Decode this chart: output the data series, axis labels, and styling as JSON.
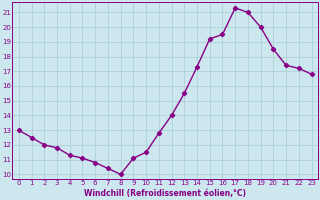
{
  "x": [
    0,
    1,
    2,
    3,
    4,
    5,
    6,
    7,
    8,
    9,
    10,
    11,
    12,
    13,
    14,
    15,
    16,
    17,
    18,
    19,
    20,
    21,
    22,
    23
  ],
  "y": [
    13.0,
    12.5,
    12.0,
    11.8,
    11.3,
    11.1,
    10.8,
    10.4,
    10.0,
    11.1,
    11.5,
    12.8,
    14.0,
    15.5,
    17.3,
    19.2,
    19.5,
    21.3,
    21.0,
    20.0,
    18.5,
    17.4,
    17.2,
    16.8
  ],
  "line_color": "#880088",
  "marker": "D",
  "marker_size": 2.2,
  "bg_color": "#cce8ee",
  "grid_color": "#aaccd4",
  "xlabel": "Windchill (Refroidissement éolien,°C)",
  "ylim": [
    9.7,
    21.7
  ],
  "xlim": [
    -0.5,
    23.5
  ],
  "yticks": [
    10,
    11,
    12,
    13,
    14,
    15,
    16,
    17,
    18,
    19,
    20,
    21
  ],
  "xticks": [
    0,
    1,
    2,
    3,
    4,
    5,
    6,
    7,
    8,
    9,
    10,
    11,
    12,
    13,
    14,
    15,
    16,
    17,
    18,
    19,
    20,
    21,
    22,
    23
  ],
  "tick_fontsize": 5.0,
  "xlabel_fontsize": 5.5,
  "line_width": 1.0
}
